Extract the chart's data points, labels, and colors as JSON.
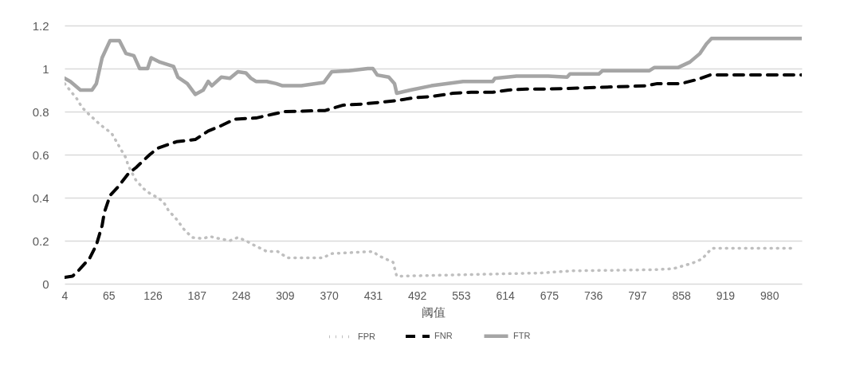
{
  "chart_data": {
    "type": "line",
    "xlabel": "阈值",
    "xlim": [
      4,
      1025
    ],
    "xticks": [
      4,
      65,
      126,
      187,
      248,
      309,
      370,
      431,
      492,
      553,
      614,
      675,
      736,
      797,
      858,
      919,
      980
    ],
    "ylim": [
      0,
      1.2
    ],
    "yticks": [
      0,
      0.2,
      0.4,
      0.6,
      0.8,
      1,
      1.2
    ],
    "grid": "y",
    "legend": "bottom",
    "series": [
      {
        "name": "FPR",
        "color": "#bfbfbf",
        "line_style": "dotted",
        "x": [
          4,
          21,
          28,
          37,
          53,
          69,
          76,
          81,
          89,
          92,
          103,
          114,
          122,
          133,
          141,
          148,
          159,
          170,
          181,
          196,
          205,
          218,
          233,
          244,
          255,
          266,
          284,
          299,
          313,
          362,
          373,
          431,
          439,
          459,
          464,
          663,
          707,
          818,
          847,
          873,
          887,
          895,
          901,
          1011
        ],
        "values": [
          0.93,
          0.86,
          0.82,
          0.79,
          0.74,
          0.7,
          0.66,
          0.63,
          0.585,
          0.55,
          0.48,
          0.44,
          0.42,
          0.4,
          0.38,
          0.34,
          0.3,
          0.25,
          0.215,
          0.21,
          0.22,
          0.21,
          0.2,
          0.215,
          0.2,
          0.18,
          0.15,
          0.15,
          0.12,
          0.12,
          0.14,
          0.15,
          0.13,
          0.1,
          0.035,
          0.05,
          0.06,
          0.065,
          0.07,
          0.095,
          0.115,
          0.145,
          0.165,
          0.165
        ]
      },
      {
        "name": "FNR",
        "color": "#000000",
        "line_style": "dashed",
        "x": [
          4,
          15,
          23,
          39,
          48,
          56,
          59,
          67,
          78,
          92,
          103,
          122,
          133,
          159,
          185,
          203,
          218,
          240,
          269,
          295,
          310,
          365,
          390,
          417,
          461,
          490,
          512,
          542,
          567,
          597,
          619,
          644,
          674,
          722,
          810,
          825,
          858,
          881,
          898,
          1025
        ],
        "values": [
          0.03,
          0.035,
          0.06,
          0.12,
          0.18,
          0.27,
          0.33,
          0.41,
          0.45,
          0.51,
          0.54,
          0.6,
          0.63,
          0.66,
          0.67,
          0.71,
          0.73,
          0.765,
          0.77,
          0.79,
          0.8,
          0.805,
          0.83,
          0.835,
          0.85,
          0.865,
          0.87,
          0.885,
          0.89,
          0.89,
          0.9,
          0.905,
          0.905,
          0.91,
          0.92,
          0.93,
          0.93,
          0.95,
          0.97,
          0.97
        ]
      },
      {
        "name": "FTR",
        "color": "#a5a5a5",
        "line_style": "solid",
        "x": [
          4,
          12,
          26,
          42,
          48,
          56,
          67,
          80,
          89,
          100,
          108,
          119,
          124,
          136,
          155,
          161,
          174,
          185,
          196,
          203,
          208,
          221,
          233,
          244,
          255,
          262,
          269,
          284,
          297,
          306,
          332,
          363,
          374,
          398,
          424,
          431,
          437,
          453,
          461,
          464,
          483,
          512,
          556,
          597,
          600,
          630,
          674,
          700,
          704,
          744,
          749,
          814,
          821,
          854,
          870,
          884,
          893,
          900,
          1025
        ],
        "values": [
          0.955,
          0.94,
          0.9,
          0.9,
          0.93,
          1.05,
          1.13,
          1.13,
          1.07,
          1.06,
          1.0,
          1.0,
          1.05,
          1.03,
          1.01,
          0.96,
          0.93,
          0.88,
          0.9,
          0.94,
          0.92,
          0.96,
          0.955,
          0.985,
          0.98,
          0.955,
          0.94,
          0.94,
          0.93,
          0.92,
          0.92,
          0.935,
          0.985,
          0.99,
          1.0,
          1.0,
          0.97,
          0.96,
          0.93,
          0.885,
          0.9,
          0.92,
          0.94,
          0.94,
          0.955,
          0.965,
          0.965,
          0.96,
          0.975,
          0.975,
          0.99,
          0.99,
          1.005,
          1.005,
          1.03,
          1.07,
          1.115,
          1.14,
          1.14
        ]
      }
    ]
  }
}
